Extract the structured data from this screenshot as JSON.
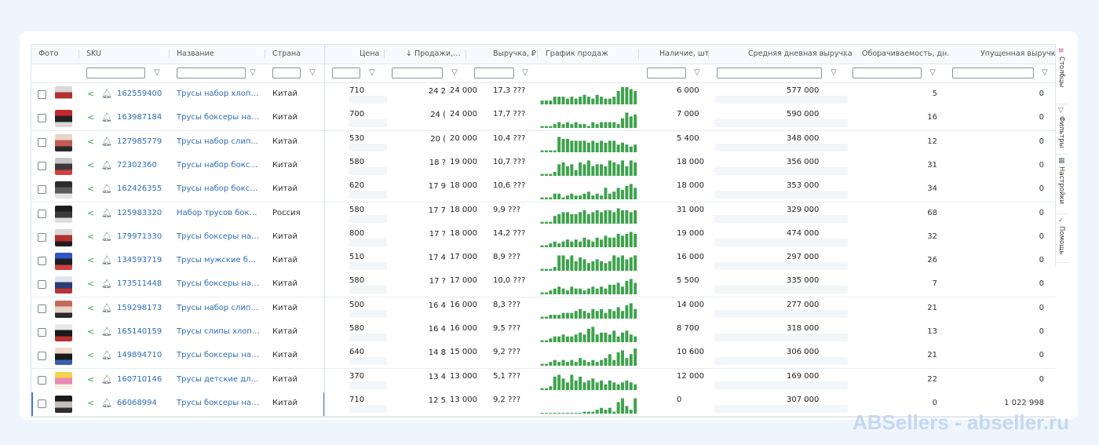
{
  "columns": {
    "photo": "Фото",
    "sku": "SKU",
    "name": "Название",
    "country": "Страна",
    "price": "Цена",
    "sales": "↓ Продажи, к...",
    "revenue": "Выручка, ₽",
    "chart": "График продаж",
    "stock": "Наличие, шт",
    "avg_revenue": "Средняя дневная выручка",
    "turnover": "Оборачиваемость, дн.",
    "lost_revenue": "Упущенная выручка"
  },
  "sidebar": {
    "columns_label": "Столбцы",
    "filters_label": "Фильтры",
    "settings_label": "Настройки",
    "help_label": "Помощь"
  },
  "rows": [
    {
      "sku": "162559400",
      "name": "Трусы набор хлопо...",
      "country": "Китай",
      "price": "710",
      "sales": "24 2",
      "revenue": "24 000",
      "revenue_full": "17,3 ???",
      "stock": "6 000",
      "avg": "577 000",
      "turnover": "5",
      "lost": "0",
      "spark": [
        2,
        2,
        2,
        4,
        4,
        4,
        3,
        4,
        3,
        4,
        5,
        4,
        3,
        5,
        4,
        3,
        3,
        4,
        7,
        9,
        9,
        8,
        7
      ]
    },
    {
      "sku": "163987184",
      "name": "Трусы боксеры наб...",
      "country": "Китай",
      "price": "700",
      "sales": "24 (",
      "revenue": "24 000",
      "revenue_full": "17,7 ???",
      "stock": "7 000",
      "avg": "590 000",
      "turnover": "16",
      "lost": "0",
      "spark": [
        1,
        1,
        1,
        2,
        3,
        2,
        3,
        2,
        3,
        2,
        2,
        1,
        3,
        2,
        3,
        3,
        3,
        3,
        2,
        5,
        8,
        6,
        7
      ]
    },
    {
      "sku": "127985779",
      "name": "Трусы набор слип...",
      "country": "Китай",
      "price": "530",
      "sales": "20 (",
      "revenue": "20 000",
      "revenue_full": "10,4 ???",
      "stock": "5 400",
      "avg": "348 000",
      "turnover": "12",
      "lost": "0",
      "spark": [
        1,
        1,
        1,
        1,
        8,
        7,
        7,
        6,
        6,
        6,
        6,
        5,
        6,
        5,
        6,
        5,
        6,
        6,
        4,
        5,
        4,
        3,
        4
      ]
    },
    {
      "sku": "72302360",
      "name": "Трусы набор боксе...",
      "country": "Китай",
      "price": "580",
      "sales": "18 ?",
      "revenue": "19 000",
      "revenue_full": "10,7 ???",
      "stock": "18 000",
      "avg": "356 000",
      "turnover": "31",
      "lost": "0",
      "spark": [
        1,
        1,
        1,
        2,
        6,
        7,
        5,
        6,
        3,
        7,
        6,
        8,
        5,
        6,
        6,
        5,
        8,
        7,
        6,
        8,
        5,
        8,
        7
      ]
    },
    {
      "sku": "162426355",
      "name": "Трусы набор боксе...",
      "country": "Китай",
      "price": "620",
      "sales": "17 9",
      "revenue": "18 000",
      "revenue_full": "10,6 ???",
      "stock": "18 000",
      "avg": "353 000",
      "turnover": "34",
      "lost": "0",
      "spark": [
        1,
        1,
        1,
        3,
        3,
        1,
        2,
        3,
        2,
        2,
        3,
        4,
        2,
        3,
        2,
        6,
        3,
        4,
        6,
        5,
        7,
        8,
        6
      ]
    },
    {
      "sku": "125983320",
      "name": "Набор трусов бокс...",
      "country": "Россия",
      "price": "580",
      "sales": "17 7",
      "revenue": "18 000",
      "revenue_full": "9,9 ???",
      "stock": "31 000",
      "avg": "329 000",
      "turnover": "68",
      "lost": "0",
      "spark": [
        1,
        1,
        1,
        4,
        5,
        6,
        6,
        5,
        5,
        6,
        7,
        5,
        6,
        7,
        6,
        7,
        7,
        6,
        8,
        7,
        7,
        6,
        7
      ]
    },
    {
      "sku": "179971330",
      "name": "Трусы боксеры наб...",
      "country": "Китай",
      "price": "800",
      "sales": "17 ?",
      "revenue": "18 000",
      "revenue_full": "14,2 ???",
      "stock": "19 000",
      "avg": "474 000",
      "turnover": "32",
      "lost": "0",
      "spark": [
        1,
        1,
        2,
        3,
        2,
        3,
        4,
        3,
        4,
        3,
        5,
        4,
        3,
        5,
        4,
        6,
        5,
        5,
        7,
        6,
        7,
        8,
        7
      ]
    },
    {
      "sku": "134593719",
      "name": "Трусы мужские бок...",
      "country": "Китай",
      "price": "510",
      "sales": "17 4",
      "revenue": "17 000",
      "revenue_full": "8,9 ???",
      "stock": "16 000",
      "avg": "297 000",
      "turnover": "26",
      "lost": "0",
      "spark": [
        1,
        1,
        1,
        2,
        8,
        8,
        6,
        8,
        5,
        7,
        6,
        4,
        5,
        6,
        5,
        4,
        5,
        8,
        7,
        8,
        6,
        7,
        8
      ]
    },
    {
      "sku": "173511448",
      "name": "Трусы боксеры наб...",
      "country": "Китай",
      "price": "580",
      "sales": "17 ?",
      "revenue": "17 000",
      "revenue_full": "10,0 ???",
      "stock": "5 500",
      "avg": "335 000",
      "turnover": "7",
      "lost": "0",
      "spark": [
        1,
        1,
        2,
        3,
        4,
        3,
        2,
        4,
        3,
        3,
        2,
        3,
        4,
        3,
        4,
        3,
        5,
        5,
        6,
        4,
        7,
        8,
        6
      ]
    },
    {
      "sku": "159298173",
      "name": "Трусы набор слип...",
      "country": "Китай",
      "price": "500",
      "sales": "16 4",
      "revenue": "16 000",
      "revenue_full": "8,3 ???",
      "stock": "14 000",
      "avg": "277 000",
      "turnover": "21",
      "lost": "0",
      "spark": [
        1,
        1,
        2,
        2,
        2,
        3,
        3,
        3,
        4,
        5,
        4,
        3,
        5,
        4,
        5,
        3,
        5,
        4,
        6,
        4,
        7,
        8,
        5
      ]
    },
    {
      "sku": "165140159",
      "name": "Трусы слипы хлопк...",
      "country": "Китай",
      "price": "580",
      "sales": "16 4",
      "revenue": "16 000",
      "revenue_full": "9,5 ???",
      "stock": "8 700",
      "avg": "318 000",
      "turnover": "13",
      "lost": "0",
      "spark": [
        1,
        1,
        2,
        3,
        3,
        4,
        3,
        3,
        4,
        5,
        4,
        7,
        8,
        4,
        5,
        5,
        4,
        6,
        3,
        5,
        6,
        4,
        3
      ]
    },
    {
      "sku": "149894710",
      "name": "Трусы боксеры наб...",
      "country": "Китай",
      "price": "640",
      "sales": "14 8",
      "revenue": "15 000",
      "revenue_full": "9,2 ???",
      "stock": "10 600",
      "avg": "306 000",
      "turnover": "21",
      "lost": "0",
      "spark": [
        1,
        1,
        2,
        3,
        2,
        3,
        2,
        3,
        2,
        4,
        3,
        2,
        3,
        2,
        3,
        4,
        6,
        3,
        7,
        8,
        4,
        6,
        9
      ]
    },
    {
      "sku": "160710146",
      "name": "Трусы детские для ...",
      "country": "Китай",
      "price": "370",
      "sales": "13 4",
      "revenue": "13 000",
      "revenue_full": "5,1 ???",
      "stock": "12 000",
      "avg": "169 000",
      "turnover": "22",
      "lost": "0",
      "spark": [
        1,
        1,
        2,
        7,
        8,
        6,
        4,
        8,
        5,
        7,
        4,
        5,
        6,
        4,
        5,
        3,
        5,
        4,
        3,
        4,
        5,
        4,
        3
      ]
    },
    {
      "sku": "66068994",
      "name": "Трусы боксеры наб...",
      "country": "Китай",
      "price": "710",
      "sales": "12 5",
      "revenue": "13 000",
      "revenue_full": "9,2 ???",
      "stock": "0",
      "avg": "307 000",
      "turnover": "0",
      "lost": "1 022 998",
      "spark": [
        0,
        0,
        0,
        0,
        0,
        0,
        0,
        0,
        0,
        0,
        1,
        1,
        1,
        2,
        3,
        2,
        3,
        1,
        6,
        8,
        4,
        2,
        8
      ]
    }
  ],
  "colors": {
    "accent": "#2d6db5",
    "spark": "#3fa24d",
    "share_icon": "#3fa24d"
  },
  "thumb_palette": [
    [
      "#d8d8d8",
      "#b23030",
      "#ffffff"
    ],
    [
      "#c3282d",
      "#222222",
      "#d9d9d9"
    ],
    [
      "#e8d6c8",
      "#c25a56",
      "#2a2a2a"
    ],
    [
      "#c7c7c7",
      "#3a3a3a",
      "#d04040"
    ],
    [
      "#2b2b2b",
      "#5a5a5a",
      "#e3e3e3"
    ],
    [
      "#1c1c1c",
      "#3b3b3b",
      "#dcdcdc"
    ],
    [
      "#d8d8d8",
      "#b23030",
      "#1f1f1f"
    ],
    [
      "#2f55c8",
      "#1f1f1f",
      "#d04040"
    ],
    [
      "#dfe3ea",
      "#2b3d75",
      "#b83434"
    ],
    [
      "#c46a5a",
      "#e5d3c8",
      "#2a2a2a"
    ],
    [
      "#e8e8e8",
      "#1a1a1a",
      "#b93030"
    ],
    [
      "#f0d8cc",
      "#1a1a1a",
      "#3a5fb0"
    ],
    [
      "#f4d44a",
      "#e88bb5",
      "#f5f0e0"
    ],
    [
      "#1a1a1a",
      "#c4bfb8",
      "#2f2f2f"
    ]
  ],
  "watermark": "ABSellers - abseller.ru"
}
